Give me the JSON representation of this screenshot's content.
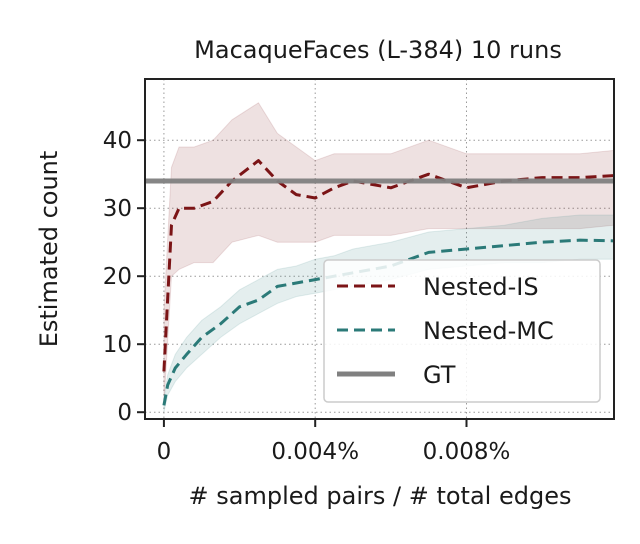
{
  "chart_data": {
    "type": "line",
    "title": "MacaqueFaces (L-384) 10 runs",
    "xlabel": "# sampled pairs / # total edges",
    "ylabel": "Estimated count",
    "xlim": [
      -0.0005,
      0.0119
    ],
    "ylim": [
      -1,
      49
    ],
    "x_unit": "%",
    "x_ticks": [
      0,
      0.004,
      0.008
    ],
    "x_tick_labels": [
      "0",
      "0.004%",
      "0.008%"
    ],
    "y_ticks": [
      0,
      10,
      20,
      30,
      40
    ],
    "y_tick_labels": [
      "0",
      "10",
      "20",
      "30",
      "40"
    ],
    "grid": true,
    "grid_style": "dotted",
    "legend_position": "lower-right",
    "series": [
      {
        "name": "Nested-IS",
        "color": "#7b1416",
        "style": "dashed",
        "x": [
          0,
          0.0002,
          0.0004,
          0.0008,
          0.0013,
          0.0018,
          0.0025,
          0.003,
          0.0035,
          0.004,
          0.0045,
          0.005,
          0.006,
          0.007,
          0.008,
          0.009,
          0.01,
          0.011,
          0.0119
        ],
        "y": [
          6,
          27.5,
          30,
          30,
          31,
          34,
          37,
          34,
          32,
          31.5,
          33,
          34,
          33,
          35,
          33,
          34,
          34.5,
          34.5,
          34.8
        ],
        "band_low": [
          1,
          20,
          21,
          22,
          22,
          25,
          26,
          25,
          25,
          25,
          26,
          26,
          26,
          27,
          27,
          27,
          27,
          27,
          27.5
        ],
        "band_high": [
          15,
          36,
          39,
          39,
          40,
          43,
          45.5,
          41,
          39,
          37,
          38,
          38,
          38,
          40,
          38,
          38,
          38,
          38,
          38.5
        ]
      },
      {
        "name": "Nested-MC",
        "color": "#2b7a78",
        "style": "dashed",
        "x": [
          0,
          0.0001,
          0.0003,
          0.0006,
          0.001,
          0.0015,
          0.002,
          0.0025,
          0.003,
          0.0035,
          0.004,
          0.0045,
          0.005,
          0.006,
          0.007,
          0.008,
          0.009,
          0.01,
          0.011,
          0.0119
        ],
        "y": [
          1,
          4,
          6.5,
          8.5,
          11,
          13,
          15.5,
          16.5,
          18.5,
          19,
          19.5,
          20,
          20.5,
          21.5,
          23.5,
          24,
          24.5,
          25,
          25.3,
          25.2
        ],
        "band_low": [
          0,
          2.5,
          4.5,
          6.5,
          8.5,
          11,
          13,
          14.5,
          16,
          17,
          17.5,
          18,
          18.5,
          19.5,
          21,
          21.5,
          22,
          22,
          22.5,
          22.5
        ],
        "band_high": [
          2,
          5.5,
          8.5,
          11,
          13.5,
          15.5,
          18,
          19.5,
          21,
          21.5,
          22.5,
          23,
          24,
          25,
          26.5,
          27,
          27.5,
          28.5,
          29,
          29
        ]
      },
      {
        "name": "GT",
        "color": "#808080",
        "style": "solid",
        "x": [
          -0.0005,
          0.0119
        ],
        "y": [
          34,
          34
        ]
      }
    ]
  }
}
